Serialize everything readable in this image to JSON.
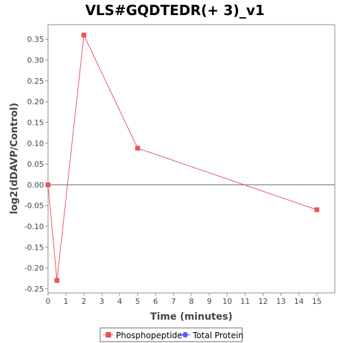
{
  "chart_data": {
    "type": "line",
    "title": "VLS#GQDTEDR(+ 3)_v1",
    "xlabel": "Time (minutes)",
    "ylabel": "log2(dDAVP/Control)",
    "xlim": [
      0,
      16
    ],
    "ylim": [
      -0.26,
      0.385
    ],
    "x_ticks": [
      0,
      1,
      2,
      3,
      4,
      5,
      6,
      7,
      8,
      9,
      10,
      11,
      12,
      13,
      14,
      15
    ],
    "y_ticks": [
      -0.25,
      -0.2,
      -0.15,
      -0.1,
      -0.05,
      0.0,
      0.05,
      0.1,
      0.15,
      0.2,
      0.25,
      0.3,
      0.35
    ],
    "y_tick_labels": [
      "-0.25",
      "-0.20",
      "-0.15",
      "-0.10",
      "-0.05",
      "0.00",
      "0.05",
      "0.10",
      "0.15",
      "0.20",
      "0.25",
      "0.30",
      "0.35"
    ],
    "zero_line": true,
    "grid": false,
    "legend_position": "bottom",
    "series": [
      {
        "name": "Phosphopeptide",
        "color": "#e8555a",
        "marker": "square",
        "x": [
          0,
          0.5,
          2,
          5,
          15
        ],
        "y": [
          0.0,
          -0.23,
          0.36,
          0.088,
          -0.06
        ]
      },
      {
        "name": "Total Protein",
        "color": "#5c5cf0",
        "marker": "circle",
        "x": [],
        "y": []
      }
    ]
  }
}
